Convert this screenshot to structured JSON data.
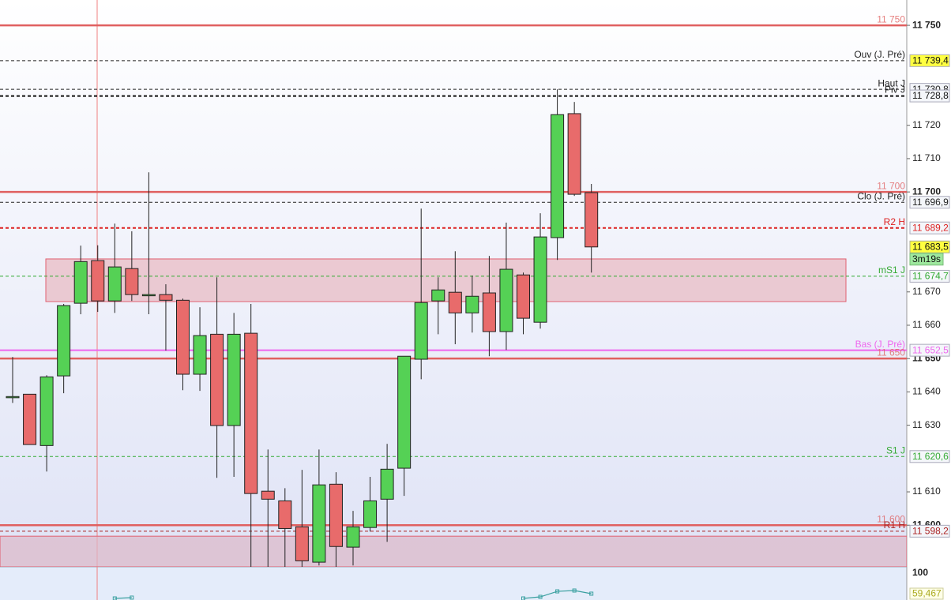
{
  "chart_data": {
    "type": "candlestick",
    "up_color": "#55d155",
    "down_color": "#e86b6b",
    "open": [
      11638.6,
      11639.3,
      11623.9,
      11644.8,
      11666.6,
      11679.4,
      11667.3,
      11677.0,
      11669.2,
      11669.2,
      11667.5,
      11645.3,
      11657.3,
      11629.9,
      11657.6,
      11610.2,
      11607.3,
      11599.5,
      11588.9,
      11612.3,
      11593.4,
      11599.3,
      11607.8,
      11617.1,
      11649.8,
      11667.3,
      11669.9,
      11663.7,
      11669.7,
      11658.1,
      11675.1,
      11660.9,
      11686.3,
      11723.5,
      11699.8
    ],
    "high": [
      11650.5,
      11639.3,
      11645.0,
      11666.4,
      11683.9,
      11684.0,
      11690.5,
      11688.2,
      11705.9,
      11672.3,
      11668.0,
      11665.4,
      11674.4,
      11663.7,
      11666.4,
      11622.7,
      11611.1,
      11616.6,
      11622.7,
      11615.9,
      11604.3,
      11614.5,
      11624.4,
      11650.7,
      11695.0,
      11674.4,
      11682.2,
      11674.9,
      11680.8,
      11690.8,
      11675.8,
      11693.6,
      11730.8,
      11727.0,
      11702.4
    ],
    "low": [
      11636.7,
      11624.2,
      11616.1,
      11639.6,
      11663.3,
      11664.0,
      11663.7,
      11667.3,
      11663.3,
      11652.4,
      11640.5,
      11640.3,
      11614.2,
      11614.5,
      11587.5,
      11587.5,
      11587.5,
      11587.5,
      11587.9,
      11587.5,
      11587.9,
      11598.1,
      11595.0,
      11608.8,
      11643.8,
      11657.3,
      11654.3,
      11657.8,
      11650.7,
      11652.6,
      11657.3,
      11659.0,
      11679.6,
      11698.8,
      11675.8
    ],
    "close": [
      11638.6,
      11624.2,
      11644.5,
      11665.9,
      11679.1,
      11667.3,
      11677.5,
      11669.2,
      11669.2,
      11667.5,
      11645.3,
      11656.9,
      11629.9,
      11657.3,
      11609.5,
      11607.8,
      11599.0,
      11589.3,
      11612.1,
      11593.6,
      11599.5,
      11607.3,
      11616.8,
      11650.7,
      11666.8,
      11670.6,
      11663.7,
      11668.7,
      11658.1,
      11676.8,
      11662.1,
      11686.5,
      11723.2,
      11699.3,
      11683.5
    ],
    "ylim": [
      11587.5,
      11757.6
    ],
    "yticks": [
      {
        "value": 11600,
        "label": "11 600"
      },
      {
        "value": 11610,
        "label": "11 610"
      },
      {
        "value": 11630,
        "label": "11 630"
      },
      {
        "value": 11640,
        "label": "11 640"
      },
      {
        "value": 11650,
        "label": "11 650"
      },
      {
        "value": 11660,
        "label": "11 660"
      },
      {
        "value": 11670,
        "label": "11 670"
      },
      {
        "value": 11700,
        "label": "11 700"
      },
      {
        "value": 11710,
        "label": "11 710"
      },
      {
        "value": 11720,
        "label": "11 720"
      },
      {
        "value": 11750,
        "label": "11 750"
      }
    ],
    "zones": [
      {
        "low": 11667.1,
        "high": 11679.9,
        "color": "#e8b8c0"
      },
      {
        "low": 11587.5,
        "high": 11596.7,
        "color": "#dcb8c8"
      }
    ],
    "levels": [
      {
        "name": "11 750",
        "value": 11750,
        "color": "#e06060",
        "style": "solid",
        "width": 2.5
      },
      {
        "name": "Ouv (J. Pré)",
        "value": 11739.4,
        "label": "11 739,4",
        "color": "#222222",
        "style": "dashed",
        "width": 1,
        "tag_fill": "#ffff40"
      },
      {
        "name": "Haut J",
        "value": 11730.8,
        "label": "11 730,8",
        "color": "#222222",
        "style": "dashed",
        "width": 1
      },
      {
        "name": "Piv J",
        "value": 11728.8,
        "label": "11 728,8",
        "color": "#111111",
        "style": "dashed",
        "width": 2
      },
      {
        "name": "11 700",
        "value": 11700,
        "color": "#e06060",
        "style": "solid",
        "width": 2.5
      },
      {
        "name": "Clo (J. Pré)",
        "value": 11696.9,
        "label": "11 696,9",
        "color": "#222222",
        "style": "dashed",
        "width": 1
      },
      {
        "name": "R2 H",
        "value": 11689.2,
        "label": "11 689,2",
        "color": "#dd2222",
        "style": "dashed",
        "width": 2
      },
      {
        "name": "mS1 J",
        "value": 11674.7,
        "label": "11 674,7",
        "color": "#33aa33",
        "style": "dashed",
        "width": 1
      },
      {
        "name": "Bas (J. Pré)",
        "value": 11652.5,
        "label": "11 652,5",
        "color": "#ee66ee",
        "style": "solid",
        "width": 2
      },
      {
        "name": "11 650",
        "value": 11650,
        "color": "#e06060",
        "style": "solid",
        "width": 2.5
      },
      {
        "name": "S1 J",
        "value": 11620.6,
        "label": "11 620,6",
        "color": "#33aa33",
        "style": "dashed",
        "width": 1
      },
      {
        "name": "11 600",
        "value": 11600,
        "color": "#e06060",
        "style": "solid",
        "width": 2.5
      },
      {
        "name": "R1 H",
        "value": 11598.2,
        "label": "11 598,2",
        "color": "#aa2222",
        "style": "dashed",
        "width": 1
      }
    ],
    "last_price": {
      "value": 11683.5,
      "label": "11 683,5"
    },
    "countdown": "3m19s",
    "indicator": {
      "values": [
        null,
        null,
        null,
        null,
        null,
        null,
        50.1,
        51.7,
        null,
        null,
        null,
        null,
        null,
        null,
        null,
        null,
        null,
        null,
        null,
        null,
        null,
        null,
        null,
        null,
        null,
        null,
        null,
        null,
        null,
        null,
        50.1,
        53.2,
        64.1,
        65.7,
        59.5
      ],
      "color": "#3aa0a0",
      "ylim": [
        47,
        112.5
      ],
      "yticks": [
        100
      ],
      "last": {
        "value": 59.467,
        "label": "59,467"
      }
    }
  }
}
